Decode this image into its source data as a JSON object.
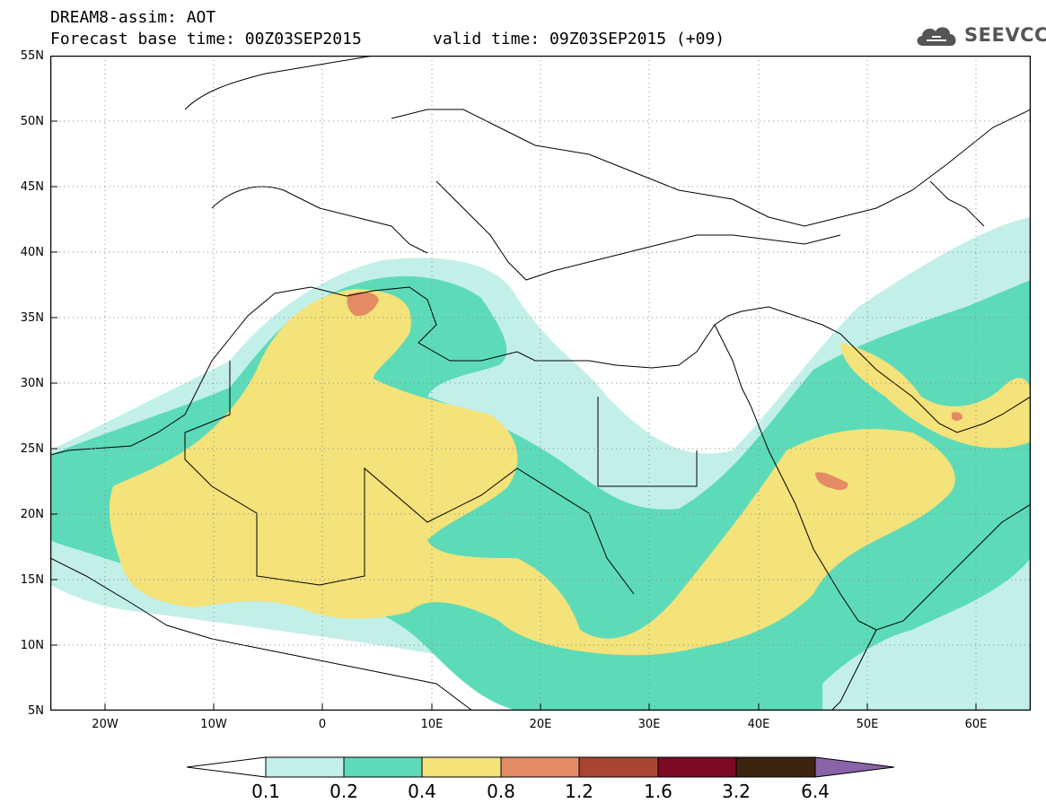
{
  "header": {
    "title_line": "DREAM8-assim: AOT",
    "base_time": "Forecast base time: 00Z03SEP2015",
    "valid_time": "valid time: 09Z03SEP2015 (+09)",
    "logo_text": "SEEVCCC"
  },
  "map": {
    "variable": "AOT",
    "lat_range": [
      5,
      55
    ],
    "lon_range": [
      -25,
      65
    ],
    "grid": "dotted",
    "lat_labels": [
      "55N",
      "50N",
      "45N",
      "40N",
      "35N",
      "30N",
      "25N",
      "20N",
      "15N",
      "10N",
      "5N"
    ],
    "lon_labels": [
      "20W",
      "10W",
      "0",
      "10E",
      "20E",
      "30E",
      "40E",
      "50E",
      "60E"
    ]
  },
  "colorbar": {
    "labels": [
      "0.1",
      "0.2",
      "0.4",
      "0.8",
      "1.2",
      "1.6",
      "3.2",
      "6.4"
    ],
    "colors": [
      "#ffffff",
      "#c3efe9",
      "#5ddbb9",
      "#f4e27a",
      "#e38b64",
      "#a84535",
      "#7c0a27",
      "#3b2310",
      "#8a64a8"
    ]
  },
  "colors": {
    "land_fill": "#ffffff",
    "border": "#000000",
    "aot_01": "#c3efe9",
    "aot_02": "#5ddbb9",
    "aot_04": "#f4e27a",
    "aot_08": "#e38b64"
  }
}
